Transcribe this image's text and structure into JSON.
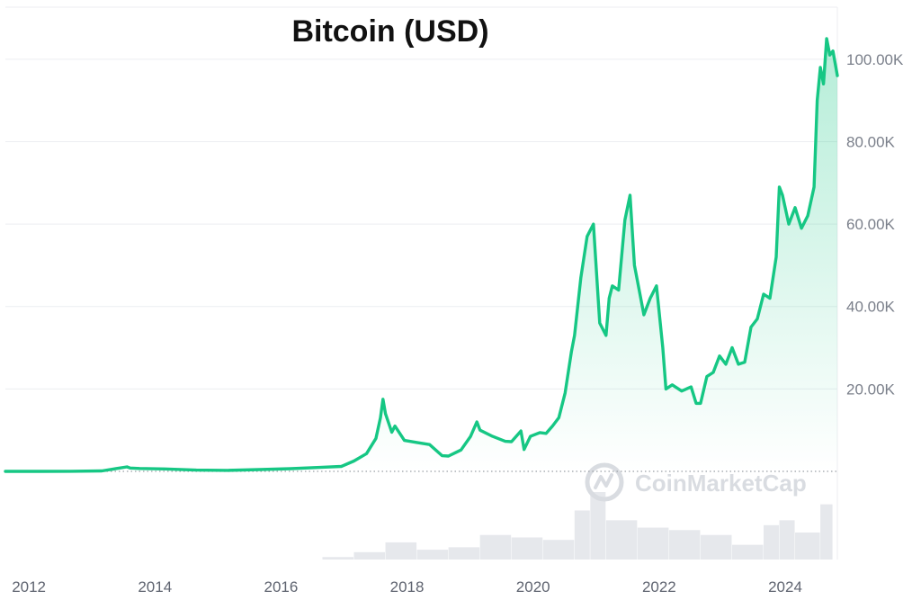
{
  "chart_data": {
    "type": "area",
    "title": "Bitcoin (USD)",
    "xlabel": "",
    "ylabel": "",
    "xlim": [
      2011.97,
      2025.17
    ],
    "ylim": [
      0,
      110000
    ],
    "grid": true,
    "y_ticks": [
      {
        "value": 20000,
        "label": "20.00K"
      },
      {
        "value": 40000,
        "label": "40.00K"
      },
      {
        "value": 60000,
        "label": "60.00K"
      },
      {
        "value": 80000,
        "label": "80.00K"
      },
      {
        "value": 100000,
        "label": "100.00K"
      }
    ],
    "x_ticks": [
      {
        "value": 2012,
        "label": "2012"
      },
      {
        "value": 2014,
        "label": "2014"
      },
      {
        "value": 2016,
        "label": "2016"
      },
      {
        "value": 2018,
        "label": "2018"
      },
      {
        "value": 2020,
        "label": "2020"
      },
      {
        "value": 2022,
        "label": "2022"
      },
      {
        "value": 2024,
        "label": "2024"
      }
    ],
    "series": [
      {
        "line_color": "#16c784",
        "x": [
          2011.97,
          2012.5,
          2013.0,
          2013.5,
          2013.9,
          2013.95,
          2014.1,
          2014.5,
          2015.0,
          2015.5,
          2016.0,
          2016.5,
          2017.0,
          2017.3,
          2017.5,
          2017.7,
          2017.85,
          2017.92,
          2017.96,
          2018.0,
          2018.1,
          2018.15,
          2018.3,
          2018.5,
          2018.7,
          2018.9,
          2019.0,
          2019.2,
          2019.35,
          2019.45,
          2019.5,
          2019.7,
          2019.9,
          2020.0,
          2020.15,
          2020.2,
          2020.3,
          2020.45,
          2020.55,
          2020.65,
          2020.75,
          2020.85,
          2020.95,
          2021.0,
          2021.1,
          2021.2,
          2021.3,
          2021.4,
          2021.5,
          2021.55,
          2021.6,
          2021.7,
          2021.8,
          2021.88,
          2021.95,
          2022.0,
          2022.1,
          2022.2,
          2022.3,
          2022.4,
          2022.45,
          2022.55,
          2022.7,
          2022.85,
          2022.93,
          2023.0,
          2023.1,
          2023.2,
          2023.3,
          2023.4,
          2023.5,
          2023.6,
          2023.7,
          2023.8,
          2023.9,
          2024.0,
          2024.1,
          2024.2,
          2024.25,
          2024.3,
          2024.4,
          2024.5,
          2024.6,
          2024.7,
          2024.8,
          2024.85,
          2024.9,
          2024.95,
          2025.0,
          2025.05,
          2025.1,
          2025.17
        ],
        "y": [
          5,
          7,
          13,
          100,
          1100,
          800,
          700,
          600,
          300,
          250,
          430,
          650,
          1000,
          1200,
          2500,
          4300,
          8000,
          13000,
          17500,
          14000,
          9500,
          11000,
          7500,
          7000,
          6500,
          3800,
          3700,
          5200,
          8500,
          12000,
          10000,
          8500,
          7300,
          7200,
          9800,
          5300,
          8500,
          9400,
          9200,
          11000,
          13000,
          19000,
          29000,
          33000,
          47000,
          57000,
          60000,
          36000,
          33000,
          42000,
          45000,
          44000,
          61000,
          67000,
          50000,
          46000,
          38000,
          42000,
          45000,
          30000,
          20000,
          21000,
          19500,
          20500,
          16500,
          16500,
          23000,
          24000,
          28000,
          26000,
          30000,
          26000,
          26500,
          35000,
          37000,
          43000,
          42000,
          52000,
          69000,
          67000,
          60000,
          64000,
          59000,
          62000,
          69000,
          90000,
          98000,
          94000,
          105000,
          101000,
          102000,
          96000
        ]
      }
    ],
    "volume": {
      "bar_color": "#e6e8ec",
      "x": [
        2017.0,
        2017.5,
        2018.0,
        2018.5,
        2019.0,
        2019.5,
        2020.0,
        2020.5,
        2021.0,
        2021.25,
        2021.5,
        2022.0,
        2022.5,
        2023.0,
        2023.5,
        2024.0,
        2024.25,
        2024.5,
        2024.9,
        2025.1
      ],
      "values": [
        2,
        6,
        14,
        8,
        10,
        20,
        18,
        16,
        40,
        55,
        32,
        26,
        24,
        20,
        12,
        28,
        32,
        22,
        45,
        30
      ]
    }
  },
  "watermark": {
    "text": "CoinMarketCap"
  },
  "colors": {
    "line": "#16c784",
    "area_top": "#16c784",
    "grid": "#eceef1",
    "baseline": "#9aa0a6",
    "volume": "#e6e8ec"
  }
}
